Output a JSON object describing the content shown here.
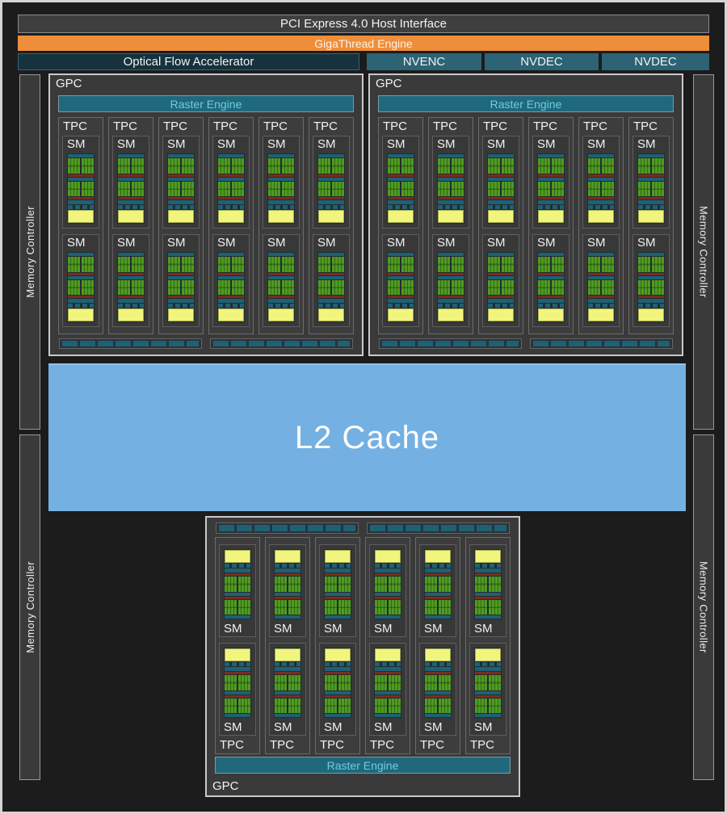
{
  "labels": {
    "pci": "PCI Express 4.0 Host Interface",
    "gigathread": "GigaThread Engine",
    "optical_flow": "Optical Flow Accelerator",
    "nvenc": "NVENC",
    "nvdec": "NVDEC",
    "memory_controller": "Memory Controller",
    "gpc": "GPC",
    "raster_engine": "Raster Engine",
    "tpc": "TPC",
    "sm": "SM",
    "l2_cache": "L2 Cache"
  },
  "structure": {
    "top_gpc_count": 2,
    "bottom_gpc_count": 1,
    "tpcs_per_gpc": 6,
    "sms_per_tpc": 2,
    "polymorph_bars_per_gpc": 2,
    "memory_controllers": 4,
    "nvdec_count": 2,
    "nvenc_count": 1
  },
  "colors": {
    "background": "#1c1c1c",
    "frame_border": "#d4d4d4",
    "bar_gray": "#3f3f3f",
    "orange": "#ef8e3a",
    "dark_teal": "#15323d",
    "teal_box": "#2c6375",
    "raster_teal": "#20697d",
    "raster_text": "#6fcbe3",
    "unit_teal": "#1e6175",
    "green": "#4f9b21",
    "green_dark": "#33691a",
    "red": "#7e2c1c",
    "yellow": "#f2f57d",
    "l2_blue": "#74b1e2",
    "block_fill": "#3a3a3a",
    "text": "#f2f2f2"
  }
}
